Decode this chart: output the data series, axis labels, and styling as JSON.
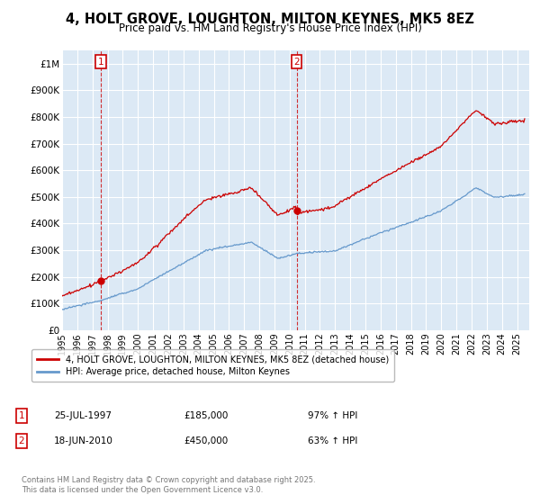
{
  "title": "4, HOLT GROVE, LOUGHTON, MILTON KEYNES, MK5 8EZ",
  "subtitle": "Price paid vs. HM Land Registry's House Price Index (HPI)",
  "ylim": [
    0,
    1050000
  ],
  "yticks": [
    0,
    100000,
    200000,
    300000,
    400000,
    500000,
    600000,
    700000,
    800000,
    900000,
    1000000
  ],
  "ytick_labels": [
    "£0",
    "£100K",
    "£200K",
    "£300K",
    "£400K",
    "£500K",
    "£600K",
    "£700K",
    "£800K",
    "£900K",
    "£1M"
  ],
  "background_color": "#ffffff",
  "plot_bg_color": "#dce9f5",
  "grid_color": "#ffffff",
  "sale1_date": 1997.57,
  "sale1_price": 185000,
  "sale1_label": "1",
  "sale2_date": 2010.46,
  "sale2_price": 450000,
  "sale2_label": "2",
  "red_line_color": "#cc0000",
  "blue_line_color": "#6699cc",
  "legend_entry1": "4, HOLT GROVE, LOUGHTON, MILTON KEYNES, MK5 8EZ (detached house)",
  "legend_entry2": "HPI: Average price, detached house, Milton Keynes",
  "annotation1_date": "25-JUL-1997",
  "annotation1_price": "£185,000",
  "annotation1_hpi": "97% ↑ HPI",
  "annotation2_date": "18-JUN-2010",
  "annotation2_price": "£450,000",
  "annotation2_hpi": "63% ↑ HPI",
  "footnote": "Contains HM Land Registry data © Crown copyright and database right 2025.\nThis data is licensed under the Open Government Licence v3.0.",
  "title_fontsize": 10.5,
  "subtitle_fontsize": 8.5,
  "tick_fontsize": 7.5
}
